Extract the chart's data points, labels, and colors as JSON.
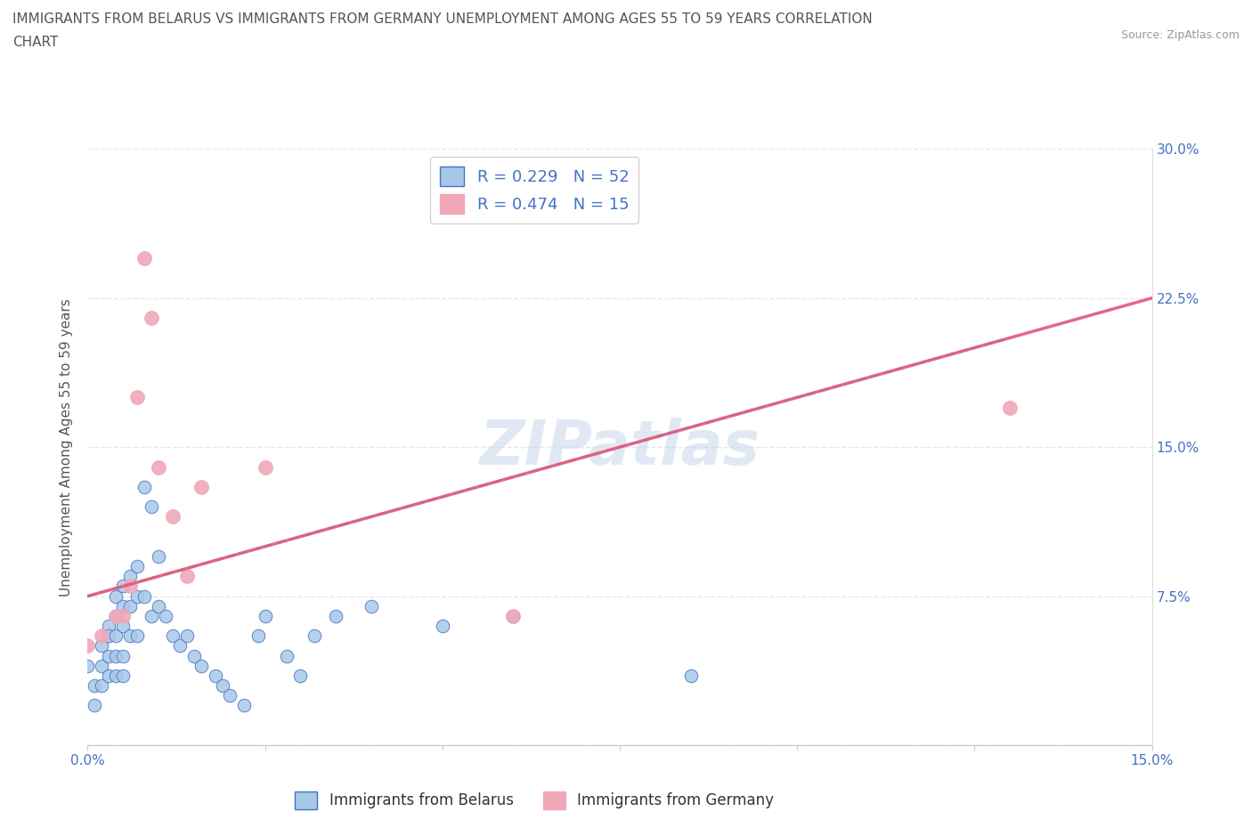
{
  "title_line1": "IMMIGRANTS FROM BELARUS VS IMMIGRANTS FROM GERMANY UNEMPLOYMENT AMONG AGES 55 TO 59 YEARS CORRELATION",
  "title_line2": "CHART",
  "source": "Source: ZipAtlas.com",
  "ylabel": "Unemployment Among Ages 55 to 59 years",
  "xlim": [
    0.0,
    0.15
  ],
  "ylim": [
    0.0,
    0.3
  ],
  "xtick_positions": [
    0.0,
    0.025,
    0.05,
    0.075,
    0.1,
    0.125,
    0.15
  ],
  "xtick_labels": [
    "0.0%",
    "",
    "",
    "",
    "",
    "",
    "15.0%"
  ],
  "ytick_positions": [
    0.0,
    0.075,
    0.15,
    0.225,
    0.3
  ],
  "ytick_labels_right": [
    "",
    "7.5%",
    "15.0%",
    "22.5%",
    "30.0%"
  ],
  "color_belarus": "#a8c8e8",
  "color_germany": "#f0a8b8",
  "color_line_belarus": "#4472c4",
  "color_line_germany": "#e06080",
  "watermark": "ZIPatlas",
  "belarus_scatter_x": [
    0.0,
    0.001,
    0.001,
    0.002,
    0.002,
    0.002,
    0.003,
    0.003,
    0.003,
    0.003,
    0.004,
    0.004,
    0.004,
    0.004,
    0.004,
    0.005,
    0.005,
    0.005,
    0.005,
    0.005,
    0.006,
    0.006,
    0.006,
    0.007,
    0.007,
    0.007,
    0.008,
    0.008,
    0.009,
    0.009,
    0.01,
    0.01,
    0.011,
    0.012,
    0.013,
    0.014,
    0.015,
    0.016,
    0.018,
    0.019,
    0.02,
    0.022,
    0.024,
    0.025,
    0.028,
    0.03,
    0.032,
    0.035,
    0.04,
    0.05,
    0.06,
    0.085
  ],
  "belarus_scatter_y": [
    0.04,
    0.03,
    0.02,
    0.05,
    0.04,
    0.03,
    0.06,
    0.055,
    0.045,
    0.035,
    0.075,
    0.065,
    0.055,
    0.045,
    0.035,
    0.08,
    0.07,
    0.06,
    0.045,
    0.035,
    0.085,
    0.07,
    0.055,
    0.09,
    0.075,
    0.055,
    0.13,
    0.075,
    0.12,
    0.065,
    0.095,
    0.07,
    0.065,
    0.055,
    0.05,
    0.055,
    0.045,
    0.04,
    0.035,
    0.03,
    0.025,
    0.02,
    0.055,
    0.065,
    0.045,
    0.035,
    0.055,
    0.065,
    0.07,
    0.06,
    0.065,
    0.035
  ],
  "germany_scatter_x": [
    0.0,
    0.002,
    0.004,
    0.005,
    0.006,
    0.007,
    0.008,
    0.009,
    0.01,
    0.012,
    0.014,
    0.016,
    0.025,
    0.06,
    0.13
  ],
  "germany_scatter_y": [
    0.05,
    0.055,
    0.065,
    0.065,
    0.08,
    0.175,
    0.245,
    0.215,
    0.14,
    0.115,
    0.085,
    0.13,
    0.14,
    0.065,
    0.17
  ],
  "belarus_line_x": [
    0.0,
    0.13
  ],
  "belarus_line_y": [
    0.075,
    0.205
  ],
  "germany_line_x": [
    0.0,
    0.15
  ],
  "germany_line_y": [
    0.075,
    0.225
  ]
}
